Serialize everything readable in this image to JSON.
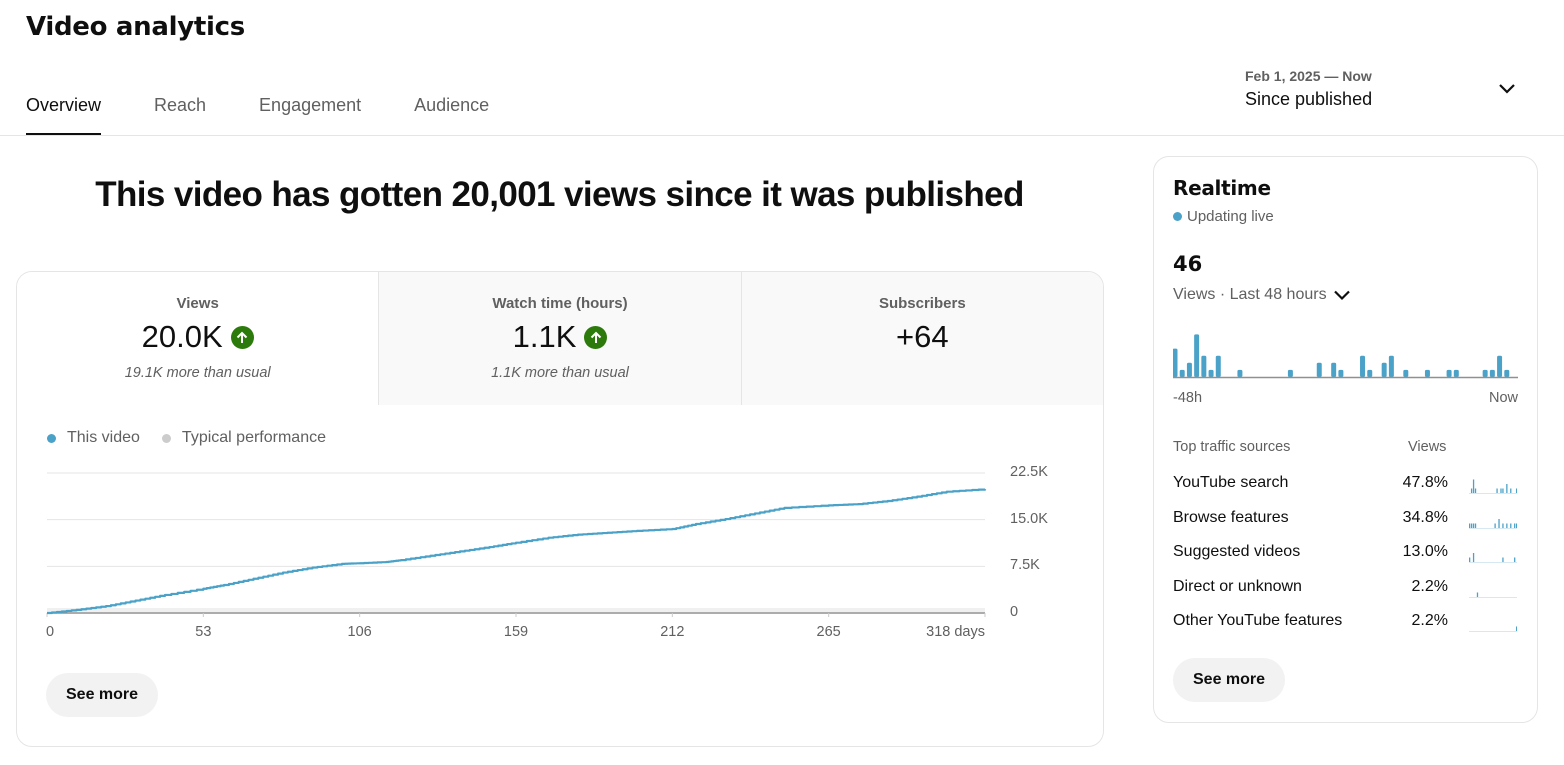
{
  "header": {
    "title": "Video analytics",
    "tabs": [
      {
        "label": "Overview",
        "active": true
      },
      {
        "label": "Reach",
        "active": false
      },
      {
        "label": "Engagement",
        "active": false
      },
      {
        "label": "Audience",
        "active": false
      }
    ],
    "date_range": {
      "range": "Feb 1, 2025 — Now",
      "label": "Since published"
    }
  },
  "main": {
    "headline": "This video has gotten 20,001 views since it was published",
    "metrics": [
      {
        "label": "Views",
        "value": "20.0K",
        "trend": "up",
        "sub": "19.1K more than usual"
      },
      {
        "label": "Watch time (hours)",
        "value": "1.1K",
        "trend": "up",
        "sub": "1.1K more than usual"
      },
      {
        "label": "Subscribers",
        "value": "+64",
        "trend": null,
        "sub": ""
      }
    ],
    "legend": [
      {
        "label": "This video",
        "color": "#4ba2c8"
      },
      {
        "label": "Typical performance",
        "color": "#cccccc"
      }
    ],
    "see_more": "See more"
  },
  "chart_data": {
    "type": "line",
    "title": "",
    "xlabel": "days",
    "ylabel": "Views (cumulative)",
    "x_ticks": [
      "0",
      "53",
      "106",
      "159",
      "212",
      "265",
      "318 days"
    ],
    "y_ticks": [
      "0",
      "7.5K",
      "15.0K",
      "22.5K"
    ],
    "xlim": [
      0,
      318
    ],
    "ylim": [
      0,
      22500
    ],
    "grid": true,
    "legend_position": "top-left",
    "series": [
      {
        "name": "This video",
        "color": "#4ba2c8",
        "x": [
          0,
          10,
          20,
          30,
          40,
          53,
          60,
          70,
          80,
          90,
          100,
          106,
          115,
          120,
          130,
          140,
          150,
          159,
          170,
          180,
          190,
          200,
          212,
          220,
          230,
          240,
          250,
          265,
          275,
          285,
          295,
          305,
          318
        ],
        "values": [
          0,
          500,
          1100,
          2000,
          2900,
          3900,
          4500,
          5500,
          6500,
          7300,
          7900,
          8000,
          8200,
          8500,
          9200,
          9900,
          10600,
          11300,
          12100,
          12600,
          12900,
          13200,
          13500,
          14300,
          15100,
          16000,
          16900,
          17300,
          17500,
          18000,
          18700,
          19500,
          19900
        ]
      }
    ]
  },
  "realtime": {
    "title": "Realtime",
    "status": "Updating live",
    "status_color": "#4ba2c8",
    "count": "46",
    "period": "Views · Last 48 hours",
    "axis_left": "-48h",
    "axis_right": "Now",
    "bars": [
      4,
      1,
      2,
      6,
      3,
      1,
      3,
      0,
      0,
      1,
      0,
      0,
      0,
      0,
      0,
      0,
      1,
      0,
      0,
      0,
      2,
      0,
      2,
      1,
      0,
      0,
      3,
      1,
      0,
      2,
      3,
      0,
      1,
      0,
      0,
      1,
      0,
      0,
      1,
      1,
      0,
      0,
      0,
      1,
      1,
      3,
      1,
      0
    ],
    "traffic_header": {
      "label": "Top traffic sources",
      "views": "Views"
    },
    "traffic_sources": [
      {
        "name": "YouTube search",
        "pct": "47.8%",
        "spark": [
          0,
          1,
          3,
          1,
          0,
          0,
          0,
          0,
          0,
          0,
          0,
          0,
          0,
          0,
          1,
          0,
          1,
          1,
          0,
          2,
          0,
          1,
          0,
          0,
          1
        ]
      },
      {
        "name": "Browse features",
        "pct": "34.8%",
        "spark": [
          1,
          1,
          1,
          1,
          0,
          0,
          0,
          0,
          0,
          0,
          0,
          0,
          0,
          1,
          0,
          2,
          0,
          1,
          0,
          1,
          0,
          1,
          0,
          1,
          1
        ]
      },
      {
        "name": "Suggested videos",
        "pct": "13.0%",
        "spark": [
          1,
          0,
          2,
          0,
          0,
          0,
          0,
          0,
          0,
          0,
          0,
          0,
          0,
          0,
          0,
          0,
          0,
          1,
          0,
          0,
          0,
          0,
          0,
          1,
          0
        ]
      },
      {
        "name": "Direct or unknown",
        "pct": "2.2%",
        "spark": [
          0,
          0,
          0,
          0,
          1,
          0,
          0,
          0,
          0,
          0,
          0,
          0,
          0,
          0,
          0,
          0,
          0,
          0,
          0,
          0,
          0,
          0,
          0,
          0,
          0
        ]
      },
      {
        "name": "Other YouTube features",
        "pct": "2.2%",
        "spark": [
          0,
          0,
          0,
          0,
          0,
          0,
          0,
          0,
          0,
          0,
          0,
          0,
          0,
          0,
          0,
          0,
          0,
          0,
          0,
          0,
          0,
          0,
          0,
          0,
          1
        ]
      }
    ],
    "see_more": "See more"
  }
}
